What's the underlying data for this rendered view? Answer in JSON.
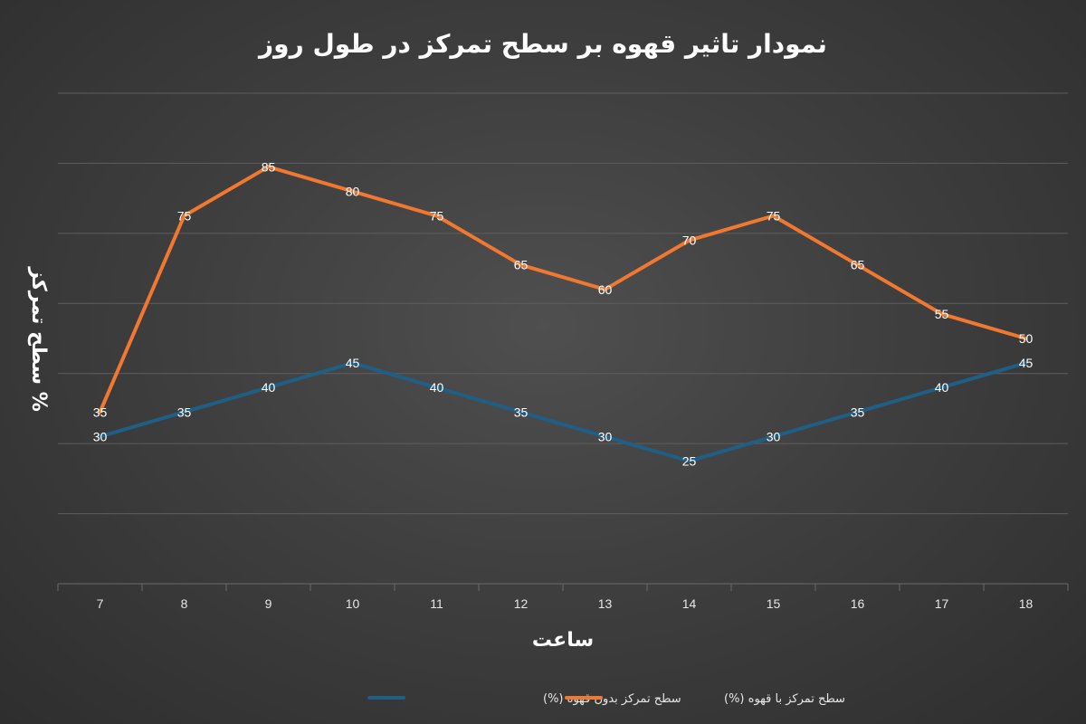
{
  "chart_data": {
    "type": "line",
    "title": "نمودار تاثیر قهوه بر سطح تمرکز در طول روز",
    "xlabel": "ساعت",
    "ylabel": "سطح تمرکز %",
    "x": [
      "7",
      "8",
      "9",
      "10",
      "11",
      "12",
      "13",
      "14",
      "15",
      "16",
      "17",
      "18"
    ],
    "ylim": [
      0,
      100
    ],
    "grid": true,
    "legend_position": "bottom",
    "series": [
      {
        "name": "سطح تمرکز بدون قهوه (%)",
        "color": "#1f5f86",
        "values": [
          30,
          35,
          40,
          45,
          40,
          35,
          30,
          25,
          30,
          35,
          40,
          45
        ]
      },
      {
        "name": "سطح تمرکز با قهوه (%)",
        "color": "#f07830",
        "values": [
          35,
          75,
          85,
          80,
          75,
          65,
          60,
          70,
          75,
          65,
          55,
          50
        ]
      }
    ]
  }
}
